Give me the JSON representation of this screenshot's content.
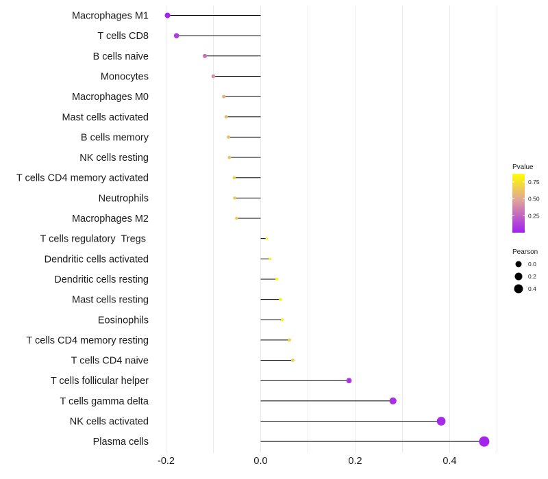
{
  "chart_data": {
    "type": "lollipop",
    "title": "",
    "xlabel": "",
    "ylabel": "",
    "xlim": [
      -0.2,
      0.5
    ],
    "x_ticks": [
      -0.2,
      0.0,
      0.2,
      0.4
    ],
    "x_tick_labels": [
      "-0.2",
      "0.0",
      "0.2",
      "0.4"
    ],
    "grid": true,
    "baseline": 0.0,
    "categories": [
      "Macrophages M1",
      "T cells CD8",
      "B cells naive",
      "Monocytes",
      "Macrophages M0",
      "Mast cells activated",
      "B cells memory",
      "NK cells resting",
      "T cells CD4 memory activated",
      "Neutrophils",
      "Macrophages M2",
      "T cells regulatory  Tregs ",
      "Dendritic cells activated",
      "Dendritic cells resting",
      "Mast cells resting",
      "Eosinophils",
      "T cells CD4 memory resting",
      "T cells CD4 naive",
      "T cells follicular helper",
      "T cells gamma delta",
      "NK cells activated",
      "Plasma cells"
    ],
    "values": [
      -0.197,
      -0.178,
      -0.118,
      -0.1,
      -0.078,
      -0.073,
      -0.068,
      -0.066,
      -0.056,
      -0.055,
      -0.051,
      0.013,
      0.02,
      0.034,
      0.042,
      0.046,
      0.061,
      0.068,
      0.187,
      0.28,
      0.382,
      0.473
    ],
    "pvalues": [
      0.02,
      0.1,
      0.3,
      0.42,
      0.55,
      0.57,
      0.6,
      0.6,
      0.65,
      0.65,
      0.67,
      0.98,
      0.95,
      0.85,
      0.82,
      0.8,
      0.68,
      0.66,
      0.08,
      0.06,
      0.04,
      0.02
    ],
    "legends": {
      "color": {
        "title": "Pvalue",
        "ticks": [
          0.25,
          0.5,
          0.75
        ],
        "tick_labels": [
          "0.25",
          "0.50",
          "0.75"
        ],
        "range": [
          0.0,
          0.87
        ],
        "low_color": "#a020f0",
        "mid_color": "#e0a39a",
        "high_color": "#ffff00"
      },
      "size": {
        "title": "Pearson",
        "values": [
          0.0,
          0.2,
          0.4
        ],
        "labels": [
          "0.0",
          "0.2",
          "0.4"
        ]
      },
      "placement": "right"
    }
  }
}
